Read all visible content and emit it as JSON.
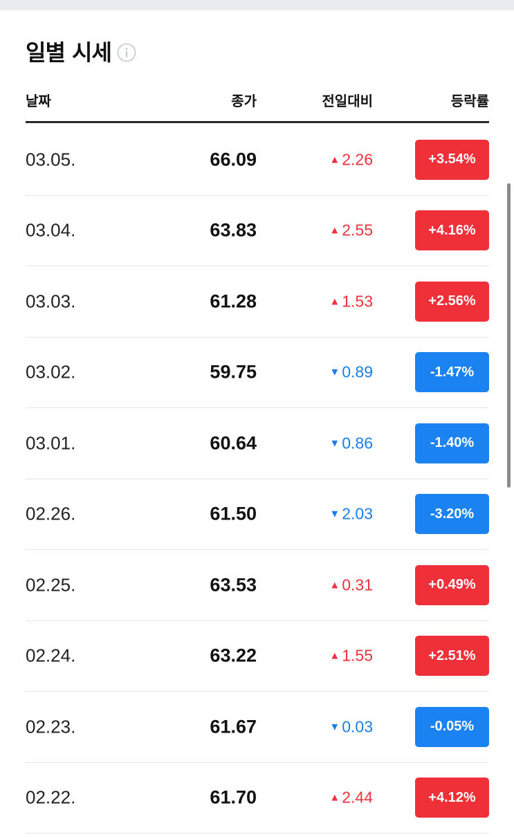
{
  "title": "일별 시세",
  "headers": {
    "date": "날짜",
    "close": "종가",
    "change": "전일대비",
    "rate": "등락률"
  },
  "colors": {
    "up": "#f0323c",
    "down": "#1a7fe8",
    "badge_up": "#ef3039",
    "badge_down": "#1a82f1"
  },
  "rows": [
    {
      "date": "03.05.",
      "close": "66.09",
      "dir": "up",
      "arrow": "▲",
      "change": "2.26",
      "rate": "+3.54%"
    },
    {
      "date": "03.04.",
      "close": "63.83",
      "dir": "up",
      "arrow": "▲",
      "change": "2.55",
      "rate": "+4.16%"
    },
    {
      "date": "03.03.",
      "close": "61.28",
      "dir": "up",
      "arrow": "▲",
      "change": "1.53",
      "rate": "+2.56%"
    },
    {
      "date": "03.02.",
      "close": "59.75",
      "dir": "down",
      "arrow": "▼",
      "change": "0.89",
      "rate": "-1.47%"
    },
    {
      "date": "03.01.",
      "close": "60.64",
      "dir": "down",
      "arrow": "▼",
      "change": "0.86",
      "rate": "-1.40%"
    },
    {
      "date": "02.26.",
      "close": "61.50",
      "dir": "down",
      "arrow": "▼",
      "change": "2.03",
      "rate": "-3.20%"
    },
    {
      "date": "02.25.",
      "close": "63.53",
      "dir": "up",
      "arrow": "▲",
      "change": "0.31",
      "rate": "+0.49%"
    },
    {
      "date": "02.24.",
      "close": "63.22",
      "dir": "up",
      "arrow": "▲",
      "change": "1.55",
      "rate": "+2.51%"
    },
    {
      "date": "02.23.",
      "close": "61.67",
      "dir": "down",
      "arrow": "▼",
      "change": "0.03",
      "rate": "-0.05%"
    },
    {
      "date": "02.22.",
      "close": "61.70",
      "dir": "up",
      "arrow": "▲",
      "change": "2.44",
      "rate": "+4.12%"
    }
  ]
}
